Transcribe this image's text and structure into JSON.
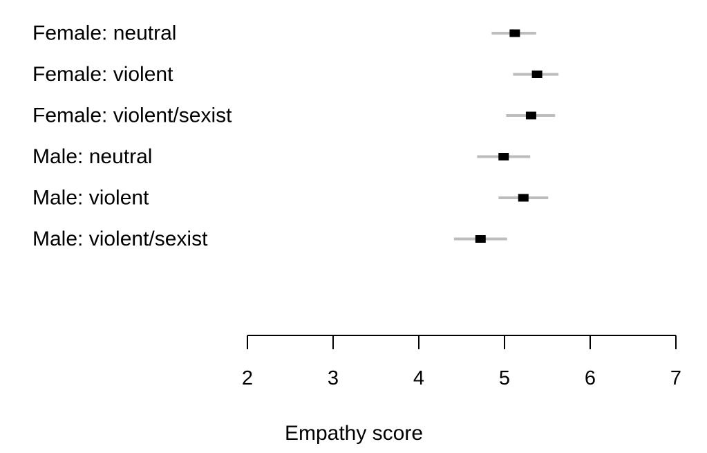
{
  "chart_data": {
    "type": "scatter",
    "title": "",
    "xlabel": "Empathy score",
    "ylabel": "",
    "xlim": [
      2,
      7
    ],
    "xticks": [
      2,
      3,
      4,
      5,
      6,
      7
    ],
    "xtick_labels": [
      "2",
      "3",
      "4",
      "5",
      "6",
      "7"
    ],
    "grid": false,
    "legend": "none",
    "colors": {
      "point": "#000000",
      "interval": "#bdbdbd",
      "axis": "#000000"
    },
    "points": [
      {
        "label": "Female: neutral",
        "estimate": 5.12,
        "lower": 4.85,
        "upper": 5.37
      },
      {
        "label": "Female: violent",
        "estimate": 5.38,
        "lower": 5.1,
        "upper": 5.63
      },
      {
        "label": "Female: violent/sexist",
        "estimate": 5.31,
        "lower": 5.02,
        "upper": 5.59
      },
      {
        "label": "Male: neutral",
        "estimate": 4.99,
        "lower": 4.68,
        "upper": 5.3
      },
      {
        "label": "Male: violent",
        "estimate": 5.22,
        "lower": 4.93,
        "upper": 5.51
      },
      {
        "label": "Male: violent/sexist",
        "estimate": 4.72,
        "lower": 4.41,
        "upper": 5.03
      }
    ]
  }
}
